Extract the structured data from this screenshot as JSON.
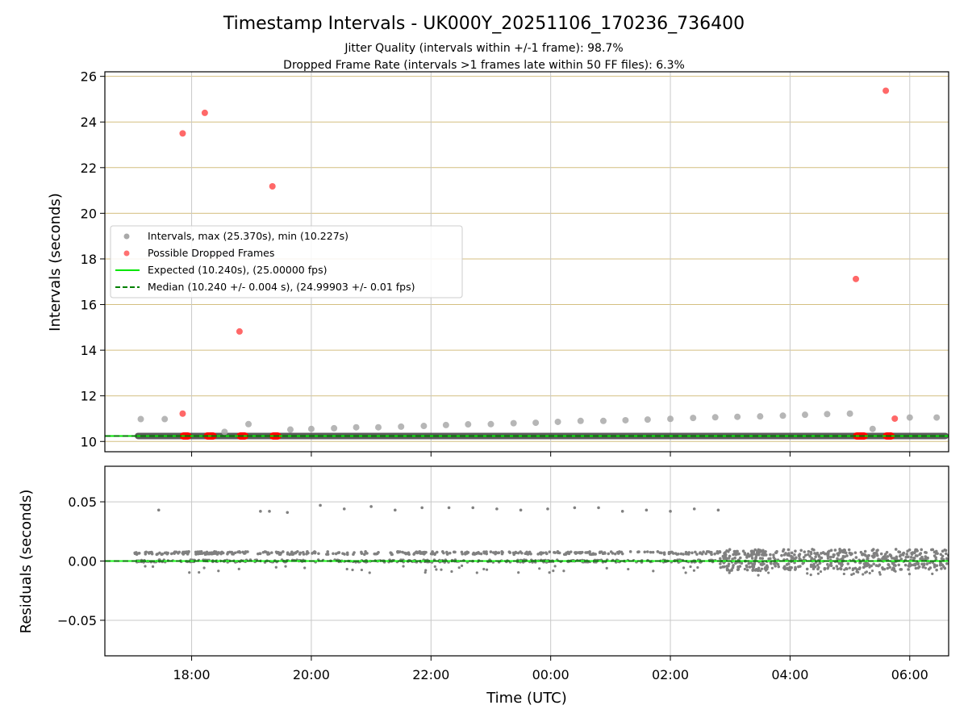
{
  "chart_data": {
    "type": "scatter",
    "title": "Timestamp Intervals - UK000Y_20251106_170236_736400",
    "subtitle_lines": [
      "Jitter Quality (intervals within +/-1 frame): 98.7%",
      "Dropped Frame Rate (intervals >1 frames late within 50 FF files): 6.3%"
    ],
    "xlabel": "Time (UTC)",
    "x_tick_labels": [
      "18:00",
      "20:00",
      "22:00",
      "00:00",
      "02:00",
      "04:00",
      "06:00"
    ],
    "x_range_hours": [
      -1.45,
      12.65
    ],
    "top_panel": {
      "ylabel": "Intervals (seconds)",
      "ylim": [
        9.55,
        26.2
      ],
      "yticks": [
        10,
        12,
        14,
        16,
        18,
        20,
        22,
        24,
        26
      ],
      "y_tick_labels": [
        "10",
        "12",
        "14",
        "16",
        "18",
        "20",
        "22",
        "24",
        "26"
      ],
      "grid": "gold horizontal, gray vertical",
      "legend": {
        "placement": "center-left",
        "entries": [
          "Intervals, max (25.370s), min (10.227s)",
          "Possible Dropped Frames",
          "Expected (10.240s), (25.00000 fps)",
          "Median (10.240 +/- 0.004 s), (24.99903 +/- 0.01 fps)"
        ]
      },
      "expected_value": 10.24,
      "median_value": 10.24,
      "series": [
        {
          "name": "Intervals, max (25.370s), min (10.227s)",
          "color": "#a9a9a9",
          "points": [
            [
              -0.85,
              10.98
            ],
            [
              -0.45,
              10.98
            ],
            [
              0.55,
              10.42
            ],
            [
              0.95,
              10.76
            ],
            [
              1.65,
              10.52
            ],
            [
              2.0,
              10.55
            ],
            [
              2.38,
              10.58
            ],
            [
              2.75,
              10.62
            ],
            [
              3.12,
              10.62
            ],
            [
              3.5,
              10.65
            ],
            [
              3.88,
              10.68
            ],
            [
              4.25,
              10.72
            ],
            [
              4.62,
              10.75
            ],
            [
              5.0,
              10.76
            ],
            [
              5.38,
              10.8
            ],
            [
              5.75,
              10.82
            ],
            [
              6.12,
              10.86
            ],
            [
              6.5,
              10.9
            ],
            [
              6.88,
              10.9
            ],
            [
              7.25,
              10.93
            ],
            [
              7.62,
              10.96
            ],
            [
              8.0,
              10.99
            ],
            [
              8.38,
              11.03
            ],
            [
              8.75,
              11.06
            ],
            [
              9.12,
              11.08
            ],
            [
              9.5,
              11.1
            ],
            [
              9.88,
              11.13
            ],
            [
              10.25,
              11.17
            ],
            [
              10.62,
              11.2
            ],
            [
              11.0,
              11.22
            ],
            [
              11.38,
              10.55
            ],
            [
              12.0,
              11.05
            ],
            [
              12.45,
              11.05
            ]
          ],
          "baseline_band": {
            "value": 10.24,
            "from_hour": -0.95,
            "to_hour": 12.65
          }
        },
        {
          "name": "Possible Dropped Frames",
          "color": "#ff4d4d",
          "points": [
            [
              -0.15,
              23.5
            ],
            [
              0.22,
              24.4
            ],
            [
              0.8,
              14.82
            ],
            [
              1.35,
              21.18
            ],
            [
              11.1,
              17.12
            ],
            [
              11.6,
              25.37
            ],
            [
              -0.15,
              11.22
            ],
            [
              11.75,
              11.0
            ]
          ],
          "baseline_clusters": [
            {
              "from_hour": -0.2,
              "to_hour": 0.0
            },
            {
              "from_hour": 0.2,
              "to_hour": 0.42
            },
            {
              "from_hour": 0.75,
              "to_hour": 0.95
            },
            {
              "from_hour": 1.3,
              "to_hour": 1.5
            },
            {
              "from_hour": 11.05,
              "to_hour": 11.3
            },
            {
              "from_hour": 11.55,
              "to_hour": 11.75
            }
          ]
        }
      ]
    },
    "bottom_panel": {
      "ylabel": "Residuals (seconds)",
      "ylim": [
        -0.08,
        0.08
      ],
      "yticks": [
        0.05,
        0.0,
        -0.05
      ],
      "y_tick_labels": [
        "0.05",
        "0.00",
        "−0.05"
      ],
      "grid": "gray",
      "series": [
        {
          "name": "Residuals",
          "color": "#808080",
          "outliers": [
            [
              -0.55,
              0.043
            ],
            [
              1.15,
              0.042
            ],
            [
              1.3,
              0.042
            ],
            [
              1.6,
              0.041
            ],
            [
              2.15,
              0.047
            ],
            [
              2.55,
              0.044
            ],
            [
              3.0,
              0.046
            ],
            [
              3.4,
              0.043
            ],
            [
              3.85,
              0.045
            ],
            [
              4.3,
              0.045
            ],
            [
              4.7,
              0.045
            ],
            [
              5.1,
              0.044
            ],
            [
              5.5,
              0.043
            ],
            [
              5.95,
              0.044
            ],
            [
              6.4,
              0.045
            ],
            [
              6.8,
              0.045
            ],
            [
              7.2,
              0.042
            ],
            [
              7.6,
              0.043
            ],
            [
              8.0,
              0.042
            ],
            [
              8.4,
              0.044
            ],
            [
              8.8,
              0.043
            ]
          ],
          "banded_segments": [
            {
              "from_hour": -0.95,
              "to_hour": 8.8,
              "band": [
                0.0,
                0.008
              ],
              "low_outlier": -0.01
            },
            {
              "from_hour": 8.8,
              "to_hour": 12.65,
              "band": [
                -0.008,
                0.01
              ],
              "low_outlier": -0.012
            }
          ]
        },
        {
          "name": "Residual median",
          "color": "#1aff1a",
          "value": 0.0
        }
      ]
    },
    "colors": {
      "expected_line": "#00e600",
      "median_line": "#008000",
      "top_hgrid": "#d4bf80",
      "vgrid": "#c8c8c8",
      "baseline_band": "#404040"
    }
  }
}
